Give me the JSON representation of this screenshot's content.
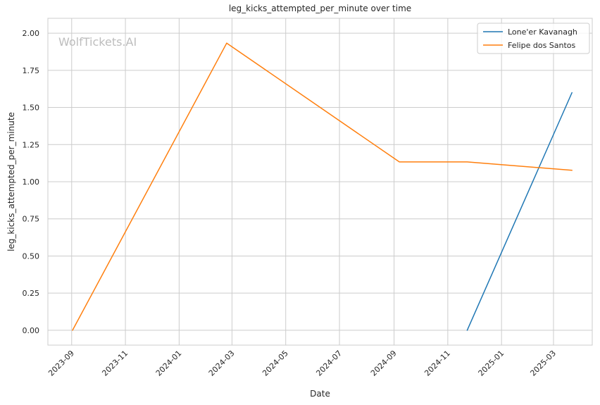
{
  "chart_data": {
    "type": "line",
    "title": "leg_kicks_attempted_per_minute over time",
    "xlabel": "Date",
    "ylabel": "leg_kicks_attempted_per_minute",
    "watermark": "WolfTickets.AI",
    "x_range": [
      "2023-08-05",
      "2025-04-14"
    ],
    "ylim": [
      -0.1,
      2.1
    ],
    "x_ticks": [
      "2023-09",
      "2023-11",
      "2024-01",
      "2024-03",
      "2024-05",
      "2024-07",
      "2024-09",
      "2024-11",
      "2025-01",
      "2025-03"
    ],
    "y_ticks": [
      "0.00",
      "0.25",
      "0.50",
      "0.75",
      "1.00",
      "1.25",
      "1.50",
      "1.75",
      "2.00"
    ],
    "grid": true,
    "legend_position": "top-right",
    "series": [
      {
        "name": "Lone'er Kavanagh",
        "color": "#1f77b4",
        "x": [
          "2024-11-23",
          "2025-03-22"
        ],
        "y": [
          0.0,
          1.6
        ]
      },
      {
        "name": "Felipe dos Santos",
        "color": "#ff7f0e",
        "x": [
          "2023-09-02",
          "2024-02-24",
          "2024-09-07",
          "2024-11-23",
          "2025-03-22"
        ],
        "y": [
          0.0,
          1.933,
          1.133,
          1.133,
          1.077
        ]
      }
    ]
  }
}
